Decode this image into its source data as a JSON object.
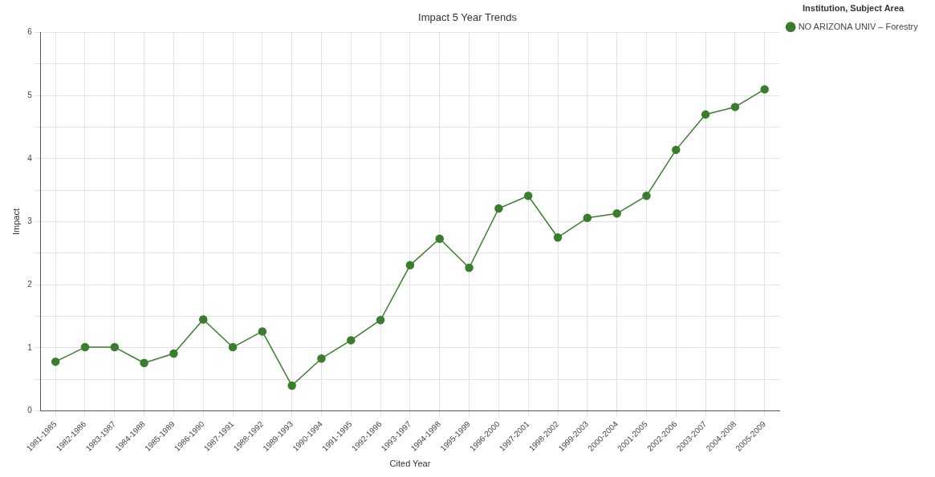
{
  "chart_data": {
    "type": "line",
    "title": "Impact 5 Year Trends",
    "xlabel": "Cited Year",
    "ylabel": "Impact",
    "legend_title": "Institution, Subject Area",
    "legend": "top right",
    "grid": true,
    "marker": "circle",
    "line_style": "solid",
    "categories": [
      "1981-1985",
      "1982-1986",
      "1983-1987",
      "1984-1988",
      "1985-1989",
      "1986-1990",
      "1987-1991",
      "1988-1992",
      "1989-1993",
      "1990-1994",
      "1991-1995",
      "1992-1996",
      "1993-1997",
      "1994-1998",
      "1995-1999",
      "1996-2000",
      "1997-2001",
      "1998-2002",
      "1999-2003",
      "2000-2004",
      "2001-2005",
      "2002-2006",
      "2003-2007",
      "2004-2008",
      "2005-2009"
    ],
    "ylim": [
      0,
      6
    ],
    "yticks": [
      0,
      {
        "value": 0.5,
        "label": null
      },
      1,
      {
        "value": 1.5,
        "label": null
      },
      2,
      {
        "value": 2.5,
        "label": null
      },
      3,
      {
        "value": 3.5,
        "label": null
      },
      4,
      {
        "value": 4.5,
        "label": null
      },
      5,
      {
        "value": 5.5,
        "label": null
      },
      6
    ],
    "series": [
      {
        "name": "NO ARIZONA UNIV – Forestry",
        "color": "#3a7d2c",
        "values": [
          0.78,
          1.01,
          1.01,
          0.76,
          0.91,
          1.45,
          1.01,
          1.26,
          0.4,
          0.83,
          1.12,
          1.44,
          2.31,
          2.73,
          2.27,
          3.21,
          3.41,
          2.75,
          3.06,
          3.13,
          3.41,
          4.14,
          4.7,
          4.82,
          5.1
        ]
      }
    ]
  }
}
